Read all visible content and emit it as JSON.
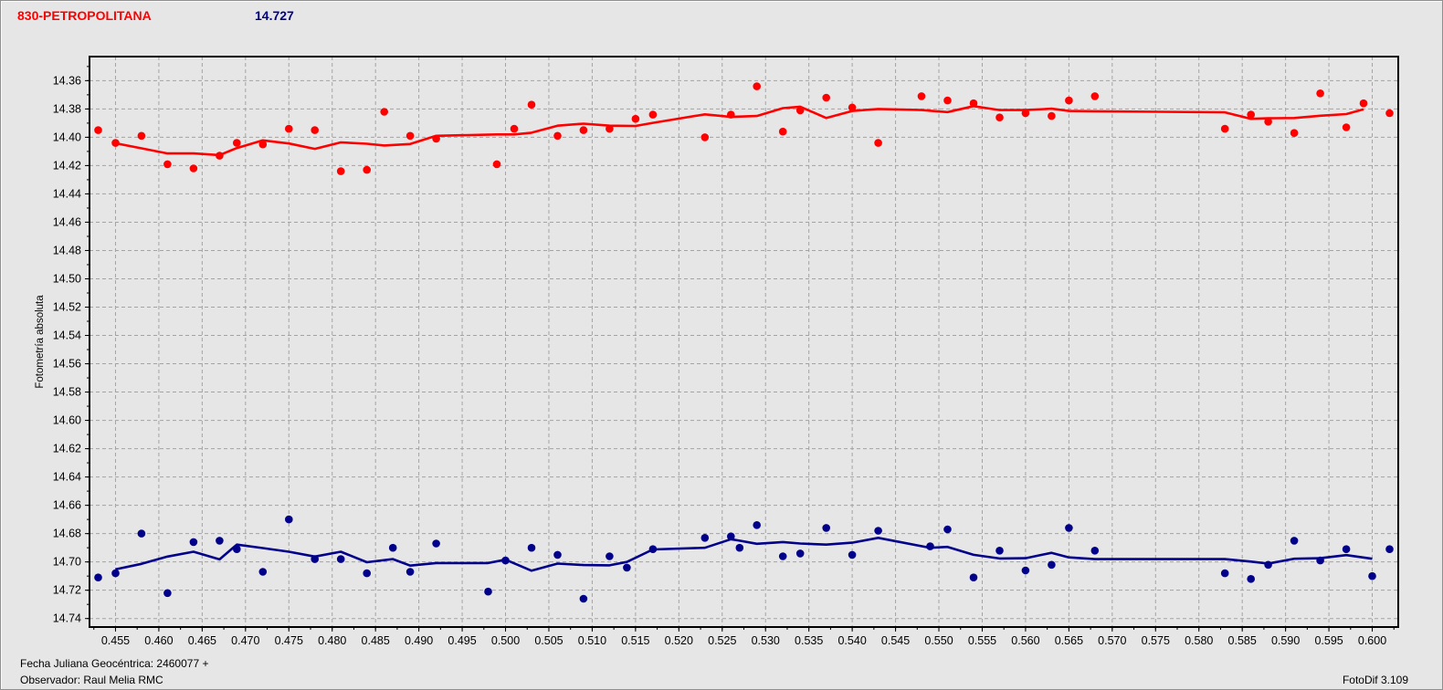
{
  "header": {
    "title": "830-PETROPOLITANA",
    "title_color": "#FF0000",
    "value": "14.727",
    "value_color": "#000080"
  },
  "footer": {
    "line1": "Fecha Juliana Geocéntrica: 2460077 +",
    "line2": "Observador: Raul Melia RMC",
    "right": "FotoDif 3.109"
  },
  "colors": {
    "window_background": "#E7E6E6",
    "grid": "#A3A3A3",
    "axis": "#000000",
    "red_series": "#FF0000",
    "blue_series": "#00008B"
  },
  "chart_data": {
    "type": "scatter",
    "title": "",
    "xlabel": "",
    "ylabel": "Fotometría absoluta",
    "xlim": [
      0.452,
      0.603
    ],
    "ylim": [
      14.343,
      14.746
    ],
    "y_increases_downward": true,
    "grid": "dashed",
    "legend": "none",
    "x_ticks": [
      "0.455",
      "0.460",
      "0.465",
      "0.470",
      "0.475",
      "0.480",
      "0.485",
      "0.490",
      "0.495",
      "0.500",
      "0.505",
      "0.510",
      "0.515",
      "0.520",
      "0.525",
      "0.530",
      "0.535",
      "0.540",
      "0.545",
      "0.550",
      "0.555",
      "0.560",
      "0.565",
      "0.570",
      "0.575",
      "0.580",
      "0.585",
      "0.590",
      "0.595",
      "0.600"
    ],
    "y_ticks": [
      "14.36",
      "14.38",
      "14.40",
      "14.42",
      "14.44",
      "14.46",
      "14.48",
      "14.50",
      "14.52",
      "14.54",
      "14.56",
      "14.58",
      "14.60",
      "14.62",
      "14.64",
      "14.66",
      "14.68",
      "14.70",
      "14.72",
      "14.74"
    ],
    "x_minor_step": 0.0025,
    "y_minor_step": 0.01,
    "series": [
      {
        "name": "red-series",
        "color": "#FF0000",
        "smoothed_trend_line": true,
        "points": [
          [
            0.453,
            14.395
          ],
          [
            0.455,
            14.404
          ],
          [
            0.458,
            14.399
          ],
          [
            0.461,
            14.419
          ],
          [
            0.464,
            14.422
          ],
          [
            0.467,
            14.413
          ],
          [
            0.469,
            14.404
          ],
          [
            0.472,
            14.405
          ],
          [
            0.475,
            14.394
          ],
          [
            0.478,
            14.395
          ],
          [
            0.481,
            14.424
          ],
          [
            0.484,
            14.423
          ],
          [
            0.486,
            14.382
          ],
          [
            0.489,
            14.399
          ],
          [
            0.492,
            14.401
          ],
          [
            0.499,
            14.419
          ],
          [
            0.501,
            14.394
          ],
          [
            0.503,
            14.377
          ],
          [
            0.506,
            14.399
          ],
          [
            0.509,
            14.395
          ],
          [
            0.512,
            14.394
          ],
          [
            0.515,
            14.387
          ],
          [
            0.517,
            14.384
          ],
          [
            0.523,
            14.4
          ],
          [
            0.526,
            14.384
          ],
          [
            0.529,
            14.364
          ],
          [
            0.532,
            14.396
          ],
          [
            0.534,
            14.381
          ],
          [
            0.537,
            14.372
          ],
          [
            0.54,
            14.379
          ],
          [
            0.543,
            14.404
          ],
          [
            0.548,
            14.371
          ],
          [
            0.551,
            14.374
          ],
          [
            0.554,
            14.376
          ],
          [
            0.557,
            14.386
          ],
          [
            0.56,
            14.383
          ],
          [
            0.563,
            14.385
          ],
          [
            0.565,
            14.374
          ],
          [
            0.568,
            14.371
          ],
          [
            0.583,
            14.394
          ],
          [
            0.586,
            14.384
          ],
          [
            0.588,
            14.389
          ],
          [
            0.591,
            14.397
          ],
          [
            0.594,
            14.369
          ],
          [
            0.597,
            14.393
          ],
          [
            0.599,
            14.376
          ],
          [
            0.602,
            14.383
          ]
        ]
      },
      {
        "name": "blue-series",
        "color": "#00008B",
        "smoothed_trend_line": true,
        "points": [
          [
            0.453,
            14.711
          ],
          [
            0.455,
            14.708
          ],
          [
            0.458,
            14.68
          ],
          [
            0.461,
            14.722
          ],
          [
            0.464,
            14.686
          ],
          [
            0.467,
            14.685
          ],
          [
            0.469,
            14.691
          ],
          [
            0.472,
            14.707
          ],
          [
            0.475,
            14.67
          ],
          [
            0.478,
            14.698
          ],
          [
            0.481,
            14.698
          ],
          [
            0.484,
            14.708
          ],
          [
            0.487,
            14.69
          ],
          [
            0.489,
            14.707
          ],
          [
            0.492,
            14.687
          ],
          [
            0.498,
            14.721
          ],
          [
            0.5,
            14.699
          ],
          [
            0.503,
            14.69
          ],
          [
            0.506,
            14.695
          ],
          [
            0.509,
            14.726
          ],
          [
            0.512,
            14.696
          ],
          [
            0.514,
            14.704
          ],
          [
            0.517,
            14.691
          ],
          [
            0.523,
            14.683
          ],
          [
            0.526,
            14.682
          ],
          [
            0.527,
            14.69
          ],
          [
            0.529,
            14.674
          ],
          [
            0.532,
            14.696
          ],
          [
            0.534,
            14.694
          ],
          [
            0.537,
            14.676
          ],
          [
            0.54,
            14.695
          ],
          [
            0.543,
            14.678
          ],
          [
            0.549,
            14.689
          ],
          [
            0.551,
            14.677
          ],
          [
            0.554,
            14.711
          ],
          [
            0.557,
            14.692
          ],
          [
            0.56,
            14.706
          ],
          [
            0.563,
            14.702
          ],
          [
            0.565,
            14.676
          ],
          [
            0.568,
            14.692
          ],
          [
            0.583,
            14.708
          ],
          [
            0.586,
            14.712
          ],
          [
            0.588,
            14.702
          ],
          [
            0.591,
            14.685
          ],
          [
            0.594,
            14.699
          ],
          [
            0.597,
            14.691
          ],
          [
            0.6,
            14.71
          ],
          [
            0.602,
            14.691
          ]
        ]
      }
    ]
  }
}
